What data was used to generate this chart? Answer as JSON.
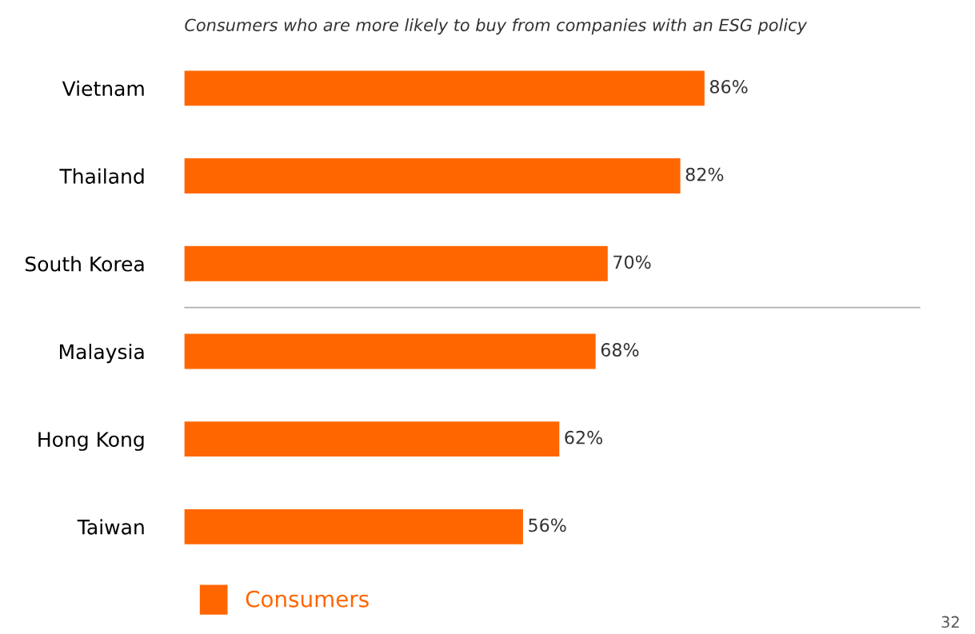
{
  "chart_data": {
    "type": "bar",
    "orientation": "horizontal",
    "title": "Consumers who are more likely to buy from companies with an ESG policy",
    "categories": [
      "Vietnam",
      "Thailand",
      "South Korea",
      "Malaysia",
      "Hong Kong",
      "Taiwan"
    ],
    "series": [
      {
        "name": "Consumers",
        "color": "#ff6600",
        "values": [
          86,
          82,
          70,
          68,
          62,
          56
        ],
        "value_labels": [
          "86%",
          "82%",
          "70%",
          "68%",
          "62%",
          "56%"
        ]
      }
    ],
    "annotations": [
      "32"
    ],
    "legend": "bottom left",
    "grid": false
  }
}
